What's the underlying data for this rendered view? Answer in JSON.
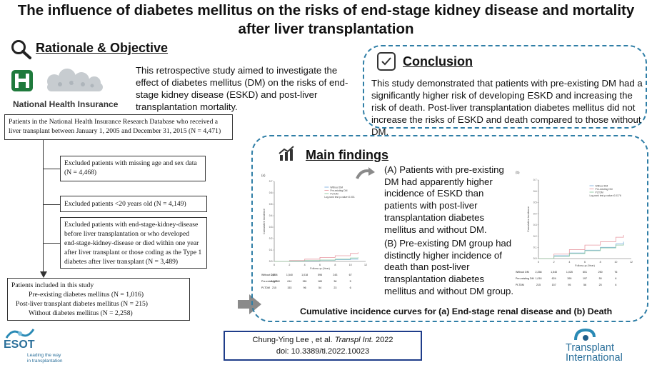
{
  "title": "The influence of diabetes mellitus on the risks of end-stage kidney disease and mortality after liver transplantation",
  "rationale": {
    "heading": "Rationale & Objective",
    "nhi_label": "National Health Insurance",
    "text": "This retrospective study aimed to investigate the effect of diabetes mellitus (DM) on the risks of end-stage kidney disease (ESKD) and post-liver transplantation mortality."
  },
  "flow": {
    "box1": "Patients in the National Health Insurance Research Database who received a liver transplant between January 1, 2005 and December 31, 2015 (N = 4,471)",
    "box2": "Excluded patients with missing age and sex data (N = 4,468)",
    "box3": "Excluded patients <20 years old (N = 4,149)",
    "box4": "Excluded patients with end-stage-kidney-disease before liver transplantation or who developed end-stage-kidney-disease or died within one year after liver transplant or those coding as the Type 1 diabetes after liver transplant (N = 3,489)",
    "box5_title": "Patients included in this study",
    "box5_items": [
      "Pre-existing diabetes mellitus (N = 1,016)",
      "Post-liver transplant diabetes mellitus (N = 215)",
      "Without diabetes mellitus (N = 2,258)"
    ]
  },
  "conclusion": {
    "heading": "Conclusion",
    "text": "This study demonstrated that patients with pre-existing DM had a significantly higher risk of developing ESKD and increasing the risk of death. Post-liver transplantation diabetes mellitus did not increase the risks of ESKD and death compared to those without DM."
  },
  "findings": {
    "heading": "Main findings",
    "a": "(A) Patients with pre-existing DM had apparently higher incidence of ESKD than patients with post-liver transplantation diabetes mellitus and without DM.",
    "b": "(B) Pre-existing DM group had distinctly higher incidence of death than post-liver transplantation diabetes mellitus and without DM group.",
    "caption": "Cumulative incidence curves for (a) End-stage renal disease and (b) Death"
  },
  "chart_data": [
    {
      "type": "line",
      "panel_label": "(a)",
      "xlabel": "Follow-up (Year)",
      "ylabel": "Cumulative incidence",
      "legend": [
        "Without DM",
        "Pre-existing DM",
        "PLTDM"
      ],
      "legend_extra": "Log-rank test p-value<0.001",
      "x_ticks": [
        "0",
        "2",
        "4",
        "6",
        "8",
        "10",
        "12"
      ],
      "y_ticks": [
        "0.0",
        "0.1",
        "0.2",
        "0.3",
        "0.4",
        "0.5",
        "0.6",
        "0.7"
      ],
      "xlim": [
        0,
        12
      ],
      "ylim": [
        0,
        0.7
      ],
      "series": [
        {
          "name": "Without DM",
          "color": "#7fb3e0",
          "x": [
            0,
            2,
            4,
            6,
            8,
            10,
            11
          ],
          "y": [
            0,
            0.003,
            0.006,
            0.01,
            0.015,
            0.02,
            0.022
          ]
        },
        {
          "name": "Pre-existing DM",
          "color": "#e89aa3",
          "x": [
            0,
            2,
            4,
            6,
            8,
            10,
            11
          ],
          "y": [
            0,
            0.008,
            0.02,
            0.035,
            0.05,
            0.07,
            0.08
          ]
        },
        {
          "name": "PLTDM",
          "color": "#8fc9a0",
          "x": [
            0,
            2,
            4,
            6,
            8,
            10,
            11
          ],
          "y": [
            0,
            0.004,
            0.008,
            0.012,
            0.02,
            0.03,
            0.035
          ]
        }
      ],
      "risk_table": [
        {
          "name": "Without DM",
          "values": [
            "2,258",
            "1,540",
            "1,018",
            "596",
            "243",
            "67"
          ]
        },
        {
          "name": "Pre-existing DM",
          "values": [
            "1,016",
            "614",
            "381",
            "189",
            "36",
            "5"
          ]
        },
        {
          "name": "PLTDM",
          "values": [
            "215",
            "153",
            "96",
            "54",
            "23",
            "6"
          ]
        }
      ]
    },
    {
      "type": "line",
      "panel_label": "(b)",
      "xlabel": "Follow-up (Year)",
      "ylabel": "Cumulative incidence",
      "legend": [
        "Without DM",
        "Pre-existing DM",
        "PLTDM"
      ],
      "legend_extra": "Log-rank test p-value=0.0176",
      "x_ticks": [
        "0",
        "2",
        "4",
        "6",
        "8",
        "10",
        "12"
      ],
      "y_ticks": [
        "0.0",
        "0.1",
        "0.2",
        "0.3",
        "0.4",
        "0.5",
        "0.6",
        "0.7"
      ],
      "xlim": [
        0,
        12
      ],
      "ylim": [
        0,
        0.7
      ],
      "series": [
        {
          "name": "Without DM",
          "color": "#7fb3e0",
          "x": [
            0,
            2,
            4,
            6,
            8,
            10,
            11
          ],
          "y": [
            0,
            0.025,
            0.05,
            0.075,
            0.1,
            0.13,
            0.15
          ]
        },
        {
          "name": "Pre-existing DM",
          "color": "#e89aa3",
          "x": [
            0,
            2,
            4,
            6,
            8,
            10,
            11
          ],
          "y": [
            0,
            0.04,
            0.08,
            0.12,
            0.15,
            0.19,
            0.21
          ]
        },
        {
          "name": "PLTDM",
          "color": "#8fc9a0",
          "x": [
            0,
            2,
            4,
            6,
            8,
            10,
            11
          ],
          "y": [
            0,
            0.02,
            0.045,
            0.07,
            0.095,
            0.12,
            0.13
          ]
        }
      ],
      "risk_table": [
        {
          "name": "Without DM",
          "values": [
            "2,258",
            "1,540",
            "1,025",
            "601",
            "250",
            "76"
          ]
        },
        {
          "name": "Pre-existing DM",
          "values": [
            "1,016",
            "624",
            "390",
            "197",
            "50",
            "6"
          ]
        },
        {
          "name": "PLTDM",
          "values": [
            "215",
            "157",
            "95",
            "56",
            "25",
            "6"
          ]
        }
      ]
    }
  ],
  "citation": {
    "line1_authors": "Chung-Ying Lee , et al. ",
    "line1_journal": "Transpl Int.",
    "line1_year": " 2022",
    "line2": "doi:  10.3389/ti.2022.10023"
  },
  "esot": {
    "name": "ESOT",
    "tagline1": "Leading the way",
    "tagline2": "in transplantation"
  },
  "ti_logo": {
    "line1": "Transplant",
    "line2": "International"
  },
  "colors": {
    "accent_blue": "#2f7ea6",
    "nhi_green": "#1f7a3c",
    "arrow_gray": "#8a8a8a"
  }
}
